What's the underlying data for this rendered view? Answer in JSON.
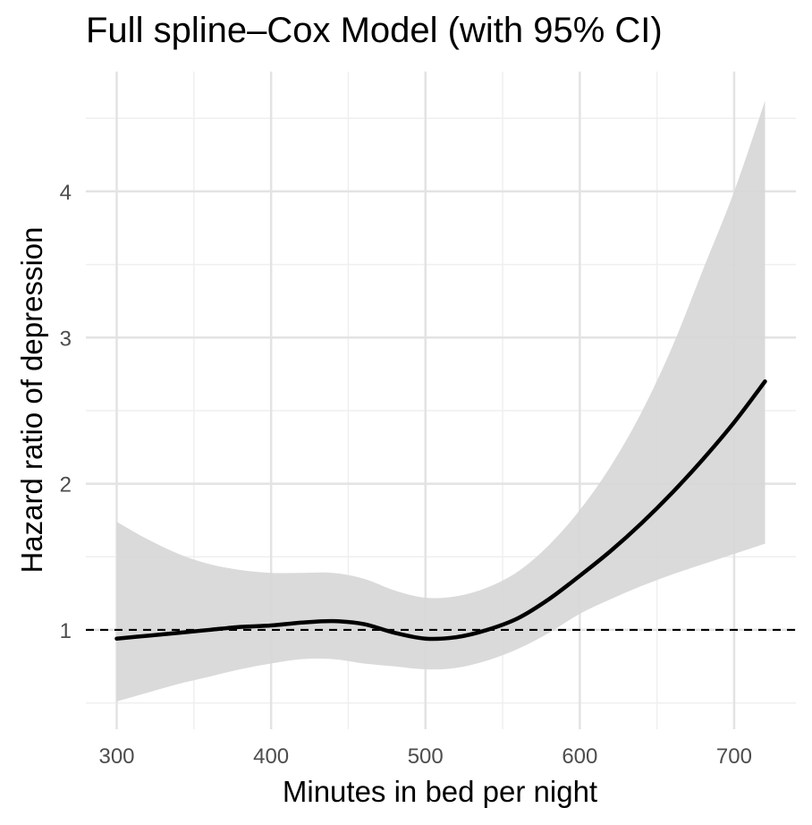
{
  "chart_data": {
    "type": "line",
    "title": "Full spline–Cox Model (with 95% CI)",
    "xlabel": "Minutes in bed per night",
    "ylabel": "Hazard ratio of depression",
    "xlim": [
      280,
      740
    ],
    "ylim": [
      0.32,
      4.82
    ],
    "x_ticks": [
      300,
      400,
      500,
      600,
      700
    ],
    "y_ticks": [
      1,
      2,
      3,
      4
    ],
    "grid": true,
    "reference_line": {
      "y": 1,
      "style": "dashed"
    },
    "series": [
      {
        "x": [
          300,
          320,
          340,
          360,
          380,
          400,
          420,
          440,
          460,
          480,
          500,
          520,
          540,
          560,
          580,
          600,
          620,
          640,
          660,
          680,
          700,
          720
        ],
        "y": [
          0.94,
          0.96,
          0.98,
          1.0,
          1.02,
          1.03,
          1.05,
          1.06,
          1.04,
          0.98,
          0.94,
          0.95,
          1.0,
          1.08,
          1.21,
          1.37,
          1.54,
          1.73,
          1.94,
          2.17,
          2.42,
          2.7
        ],
        "lower": [
          0.51,
          0.57,
          0.63,
          0.68,
          0.73,
          0.77,
          0.8,
          0.8,
          0.77,
          0.75,
          0.73,
          0.74,
          0.79,
          0.87,
          0.98,
          1.11,
          1.21,
          1.3,
          1.38,
          1.45,
          1.52,
          1.59
        ],
        "upper": [
          1.74,
          1.62,
          1.52,
          1.45,
          1.41,
          1.39,
          1.39,
          1.39,
          1.35,
          1.27,
          1.22,
          1.23,
          1.29,
          1.4,
          1.58,
          1.82,
          2.12,
          2.49,
          2.94,
          3.47,
          4.0,
          4.62
        ]
      }
    ],
    "colors": {
      "band": "#d6d6d6",
      "line": "#000000",
      "grid_major": "#e3e3e3",
      "grid_minor": "#efefef"
    }
  }
}
